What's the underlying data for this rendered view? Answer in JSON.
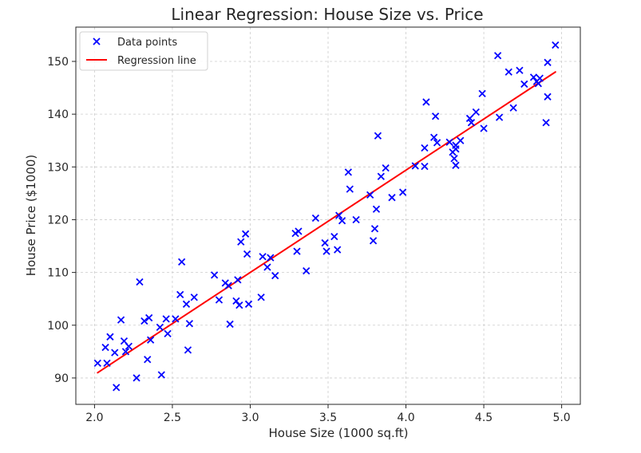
{
  "chart_data": {
    "type": "scatter",
    "title": "Linear Regression: House Size vs. Price",
    "xlabel": "House Size (1000 sq.ft)",
    "ylabel": "House Price ($1000)",
    "xlim": [
      1.88,
      5.12
    ],
    "ylim": [
      85,
      156.5
    ],
    "xticks": [
      "2.0",
      "2.5",
      "3.0",
      "3.5",
      "4.0",
      "4.5",
      "5.0"
    ],
    "yticks": [
      "90",
      "100",
      "110",
      "120",
      "130",
      "140",
      "150"
    ],
    "grid": true,
    "legend_position": "top-left",
    "colors": {
      "points": "#0000ff",
      "line": "#ff0000"
    },
    "series": [
      {
        "name": "Data points",
        "kind": "scatter",
        "marker": "x",
        "points": [
          [
            2.02,
            92.8
          ],
          [
            2.07,
            95.8
          ],
          [
            2.08,
            92.8
          ],
          [
            2.1,
            97.8
          ],
          [
            2.13,
            94.8
          ],
          [
            2.14,
            88.2
          ],
          [
            2.17,
            101.0
          ],
          [
            2.19,
            97.0
          ],
          [
            2.2,
            95.0
          ],
          [
            2.22,
            96.0
          ],
          [
            2.27,
            90.0
          ],
          [
            2.29,
            108.2
          ],
          [
            2.32,
            100.8
          ],
          [
            2.34,
            93.5
          ],
          [
            2.35,
            101.4
          ],
          [
            2.36,
            97.2
          ],
          [
            2.42,
            99.6
          ],
          [
            2.43,
            90.6
          ],
          [
            2.46,
            101.2
          ],
          [
            2.47,
            98.4
          ],
          [
            2.52,
            101.2
          ],
          [
            2.55,
            105.8
          ],
          [
            2.56,
            112.0
          ],
          [
            2.59,
            104.0
          ],
          [
            2.6,
            95.3
          ],
          [
            2.61,
            100.3
          ],
          [
            2.64,
            105.3
          ],
          [
            2.77,
            109.5
          ],
          [
            2.8,
            104.8
          ],
          [
            2.84,
            108.0
          ],
          [
            2.86,
            107.5
          ],
          [
            2.87,
            100.2
          ],
          [
            2.91,
            104.6
          ],
          [
            2.92,
            108.6
          ],
          [
            2.93,
            103.8
          ],
          [
            2.94,
            115.8
          ],
          [
            2.97,
            117.3
          ],
          [
            2.98,
            113.5
          ],
          [
            2.99,
            104.0
          ],
          [
            3.07,
            105.3
          ],
          [
            3.08,
            113.0
          ],
          [
            3.11,
            111.0
          ],
          [
            3.13,
            112.8
          ],
          [
            3.16,
            109.4
          ],
          [
            3.29,
            117.4
          ],
          [
            3.3,
            114.0
          ],
          [
            3.31,
            117.8
          ],
          [
            3.36,
            110.3
          ],
          [
            3.42,
            120.3
          ],
          [
            3.48,
            115.6
          ],
          [
            3.49,
            114.0
          ],
          [
            3.54,
            116.8
          ],
          [
            3.56,
            114.3
          ],
          [
            3.57,
            120.8
          ],
          [
            3.59,
            119.8
          ],
          [
            3.63,
            129.0
          ],
          [
            3.64,
            125.8
          ],
          [
            3.68,
            120.0
          ],
          [
            3.77,
            124.7
          ],
          [
            3.79,
            116.0
          ],
          [
            3.8,
            118.3
          ],
          [
            3.81,
            122.0
          ],
          [
            3.82,
            135.9
          ],
          [
            3.84,
            128.2
          ],
          [
            3.87,
            129.8
          ],
          [
            3.91,
            124.2
          ],
          [
            3.98,
            125.2
          ],
          [
            4.06,
            130.2
          ],
          [
            4.12,
            130.1
          ],
          [
            4.12,
            133.6
          ],
          [
            4.13,
            142.3
          ],
          [
            4.18,
            135.6
          ],
          [
            4.19,
            139.6
          ],
          [
            4.2,
            134.6
          ],
          [
            4.28,
            134.7
          ],
          [
            4.3,
            132.8
          ],
          [
            4.31,
            131.6
          ],
          [
            4.32,
            130.3
          ],
          [
            4.32,
            133.4
          ],
          [
            4.32,
            134.1
          ],
          [
            4.35,
            135.0
          ],
          [
            4.41,
            139.2
          ],
          [
            4.42,
            138.4
          ],
          [
            4.45,
            140.4
          ],
          [
            4.49,
            143.9
          ],
          [
            4.5,
            137.3
          ],
          [
            4.59,
            151.1
          ],
          [
            4.6,
            139.4
          ],
          [
            4.66,
            148.0
          ],
          [
            4.69,
            141.2
          ],
          [
            4.73,
            148.3
          ],
          [
            4.76,
            145.7
          ],
          [
            4.82,
            147.0
          ],
          [
            4.84,
            146.2
          ],
          [
            4.85,
            145.8
          ],
          [
            4.86,
            146.8
          ],
          [
            4.9,
            138.4
          ],
          [
            4.91,
            143.3
          ],
          [
            4.91,
            149.8
          ],
          [
            4.96,
            153.1
          ]
        ]
      },
      {
        "name": "Regression line",
        "kind": "line",
        "points": [
          [
            2.02,
            91.0
          ],
          [
            4.96,
            148.0
          ]
        ]
      }
    ]
  }
}
